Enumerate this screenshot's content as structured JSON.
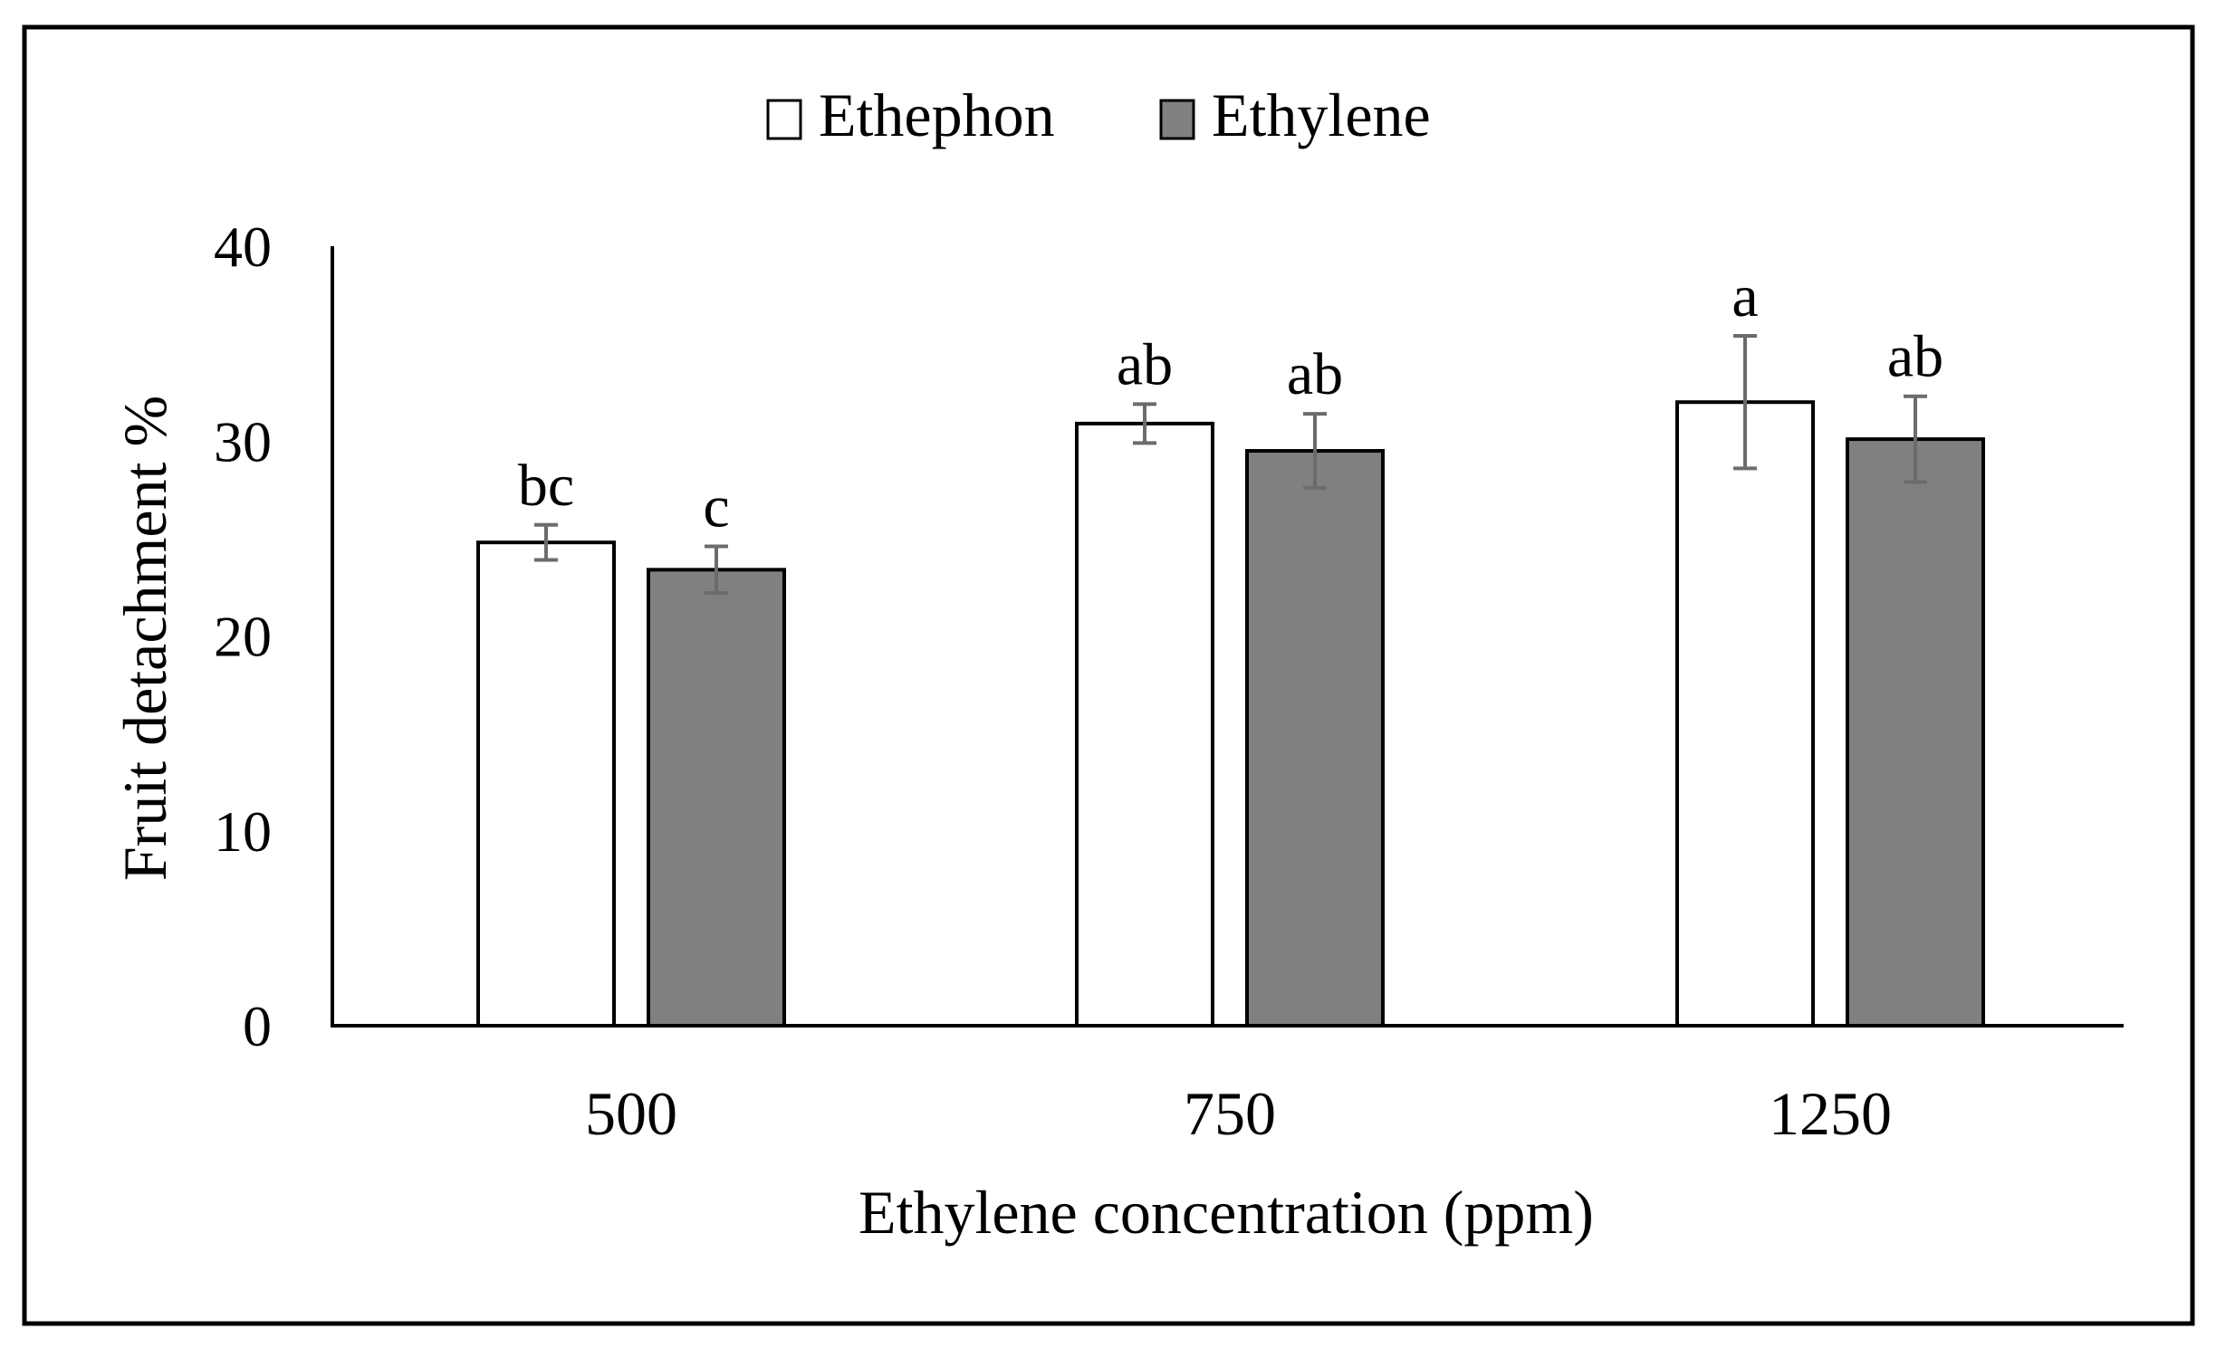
{
  "chart_data": {
    "type": "bar",
    "title": "",
    "xlabel": "Ethylene concentration (ppm)",
    "ylabel": "Fruit detachment %",
    "categories": [
      "500",
      "750",
      "1250"
    ],
    "ylim": [
      0,
      40
    ],
    "yticks": [
      "0",
      "10",
      "20",
      "30",
      "40"
    ],
    "grid": false,
    "legend_position": "top-center",
    "series": [
      {
        "name": "Ethephon",
        "color": "#ffffff",
        "values": [
          24.8,
          30.9,
          32.0
        ],
        "errors": [
          0.9,
          1.0,
          3.4
        ],
        "labels": [
          "bc",
          "ab",
          "a"
        ]
      },
      {
        "name": "Ethylene",
        "color": "#808080",
        "values": [
          23.4,
          29.5,
          30.1
        ],
        "errors": [
          1.2,
          1.9,
          2.2
        ],
        "labels": [
          "c",
          "ab",
          "ab"
        ]
      }
    ]
  }
}
